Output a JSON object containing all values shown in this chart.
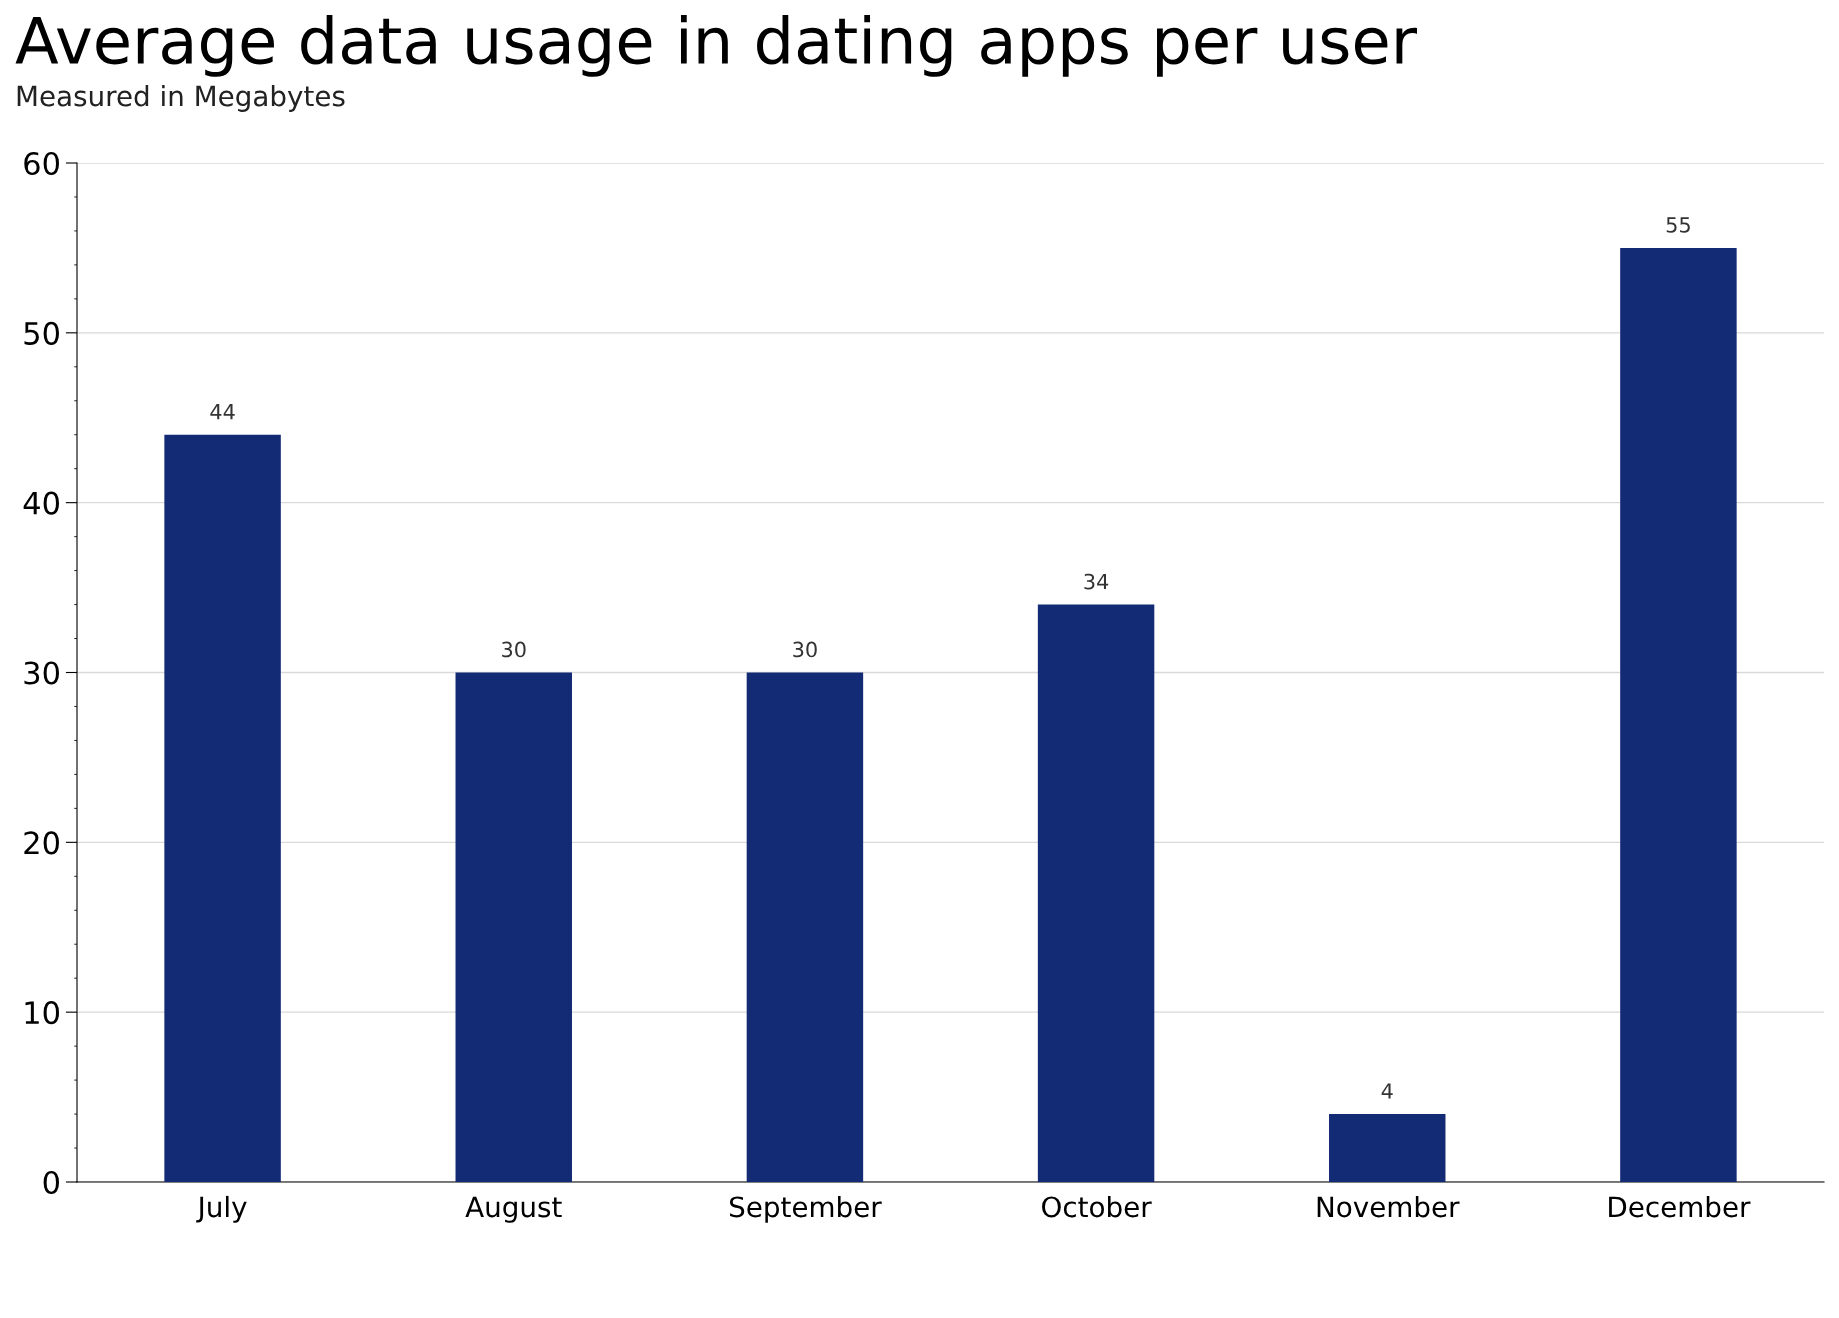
{
  "chart_data": {
    "type": "bar",
    "title": "Average data usage in dating apps per user",
    "subtitle": "Measured in Megabytes",
    "categories": [
      "July",
      "August",
      "September",
      "October",
      "November",
      "December"
    ],
    "values": [
      44,
      30,
      30,
      34,
      4,
      55
    ],
    "color": "#132a75",
    "ylim": [
      0,
      60
    ],
    "yticks": [
      0,
      10,
      20,
      30,
      40,
      50,
      60
    ],
    "grid": "y",
    "data_labels": true
  }
}
